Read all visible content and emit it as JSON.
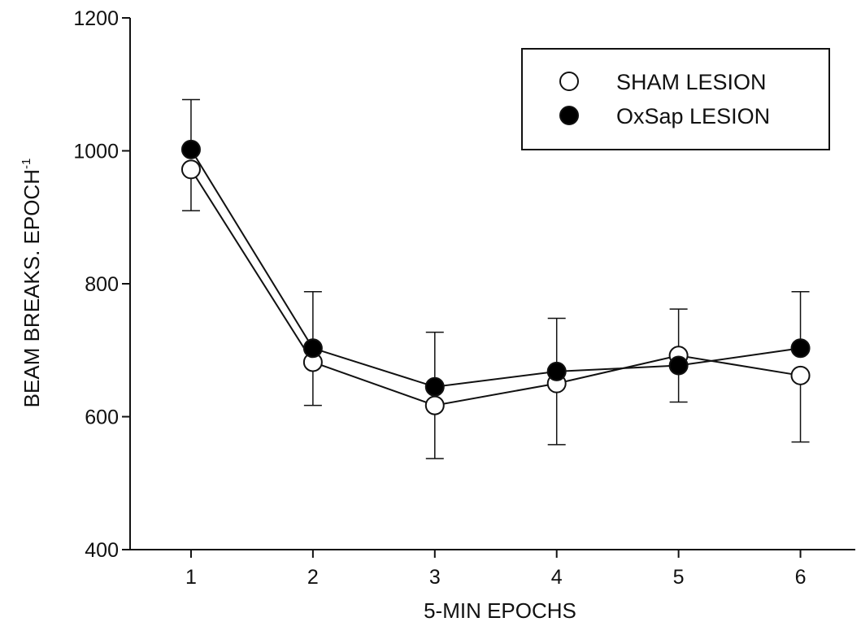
{
  "chart_data": {
    "type": "line",
    "title": "",
    "xlabel": "5-MIN EPOCHS",
    "ylabel": "BEAM BREAKS. EPOCH",
    "ylabel_sup": "-1",
    "x": [
      1,
      2,
      3,
      4,
      5,
      6
    ],
    "xlim": [
      0.5,
      6.45
    ],
    "ylim": [
      400,
      1200
    ],
    "yticks": [
      400,
      600,
      800,
      1000,
      1200
    ],
    "grid": false,
    "legend_position": "top-right",
    "series": [
      {
        "name": "SHAM LESION",
        "marker": "open-circle",
        "values": [
          972,
          682,
          617,
          650,
          692,
          662
        ],
        "error": [
          62,
          65,
          80,
          92,
          70,
          100
        ]
      },
      {
        "name": "OxSap LESION",
        "marker": "filled-circle",
        "values": [
          1002,
          703,
          645,
          668,
          677,
          703
        ],
        "error": [
          75,
          85,
          82,
          80,
          85,
          85
        ]
      }
    ],
    "colors": {
      "line": "#111111",
      "marker_fill_open": "#ffffff",
      "marker_fill_filled": "#000000"
    }
  }
}
